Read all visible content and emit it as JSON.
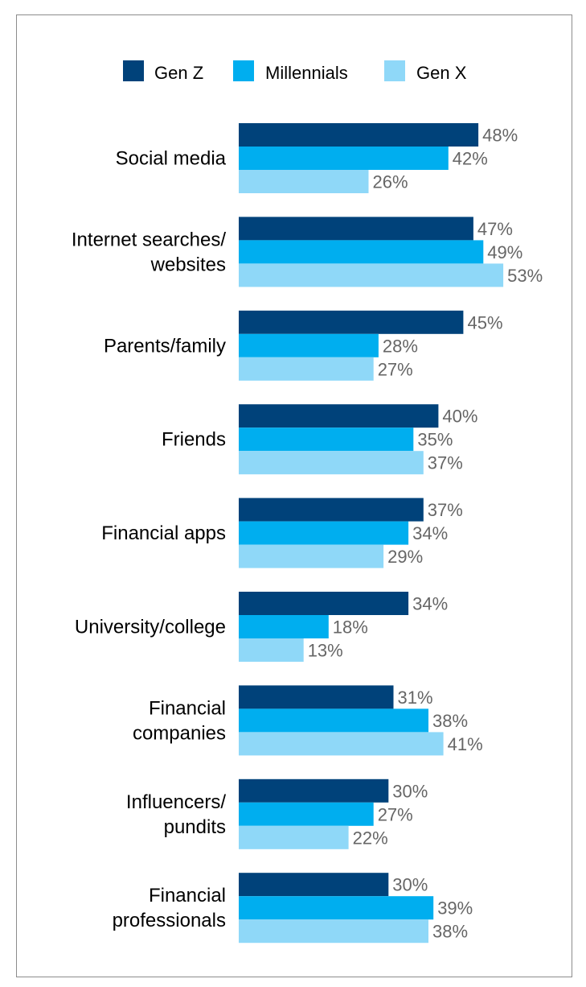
{
  "chart_data": {
    "type": "bar",
    "orientation": "horizontal",
    "title": "",
    "xlabel": "",
    "ylabel": "",
    "value_suffix": "%",
    "legend_position": "top",
    "grid": false,
    "xlim": [
      0,
      60
    ],
    "categories": [
      [
        "Social media"
      ],
      [
        "Internet searches/",
        "websites"
      ],
      [
        "Parents/family"
      ],
      [
        "Friends"
      ],
      [
        "Financial apps"
      ],
      [
        "University/college"
      ],
      [
        "Financial",
        "companies"
      ],
      [
        "Influencers/",
        "pundits"
      ],
      [
        "Financial",
        "professionals"
      ]
    ],
    "series": [
      {
        "name": "Gen Z",
        "color": "#00427a",
        "values": [
          48,
          47,
          45,
          40,
          37,
          34,
          31,
          30,
          30
        ]
      },
      {
        "name": "Millennials",
        "color": "#00aeef",
        "values": [
          42,
          49,
          28,
          35,
          34,
          18,
          38,
          27,
          39
        ]
      },
      {
        "name": "Gen X",
        "color": "#8fd8f8",
        "values": [
          26,
          53,
          27,
          37,
          29,
          13,
          41,
          22,
          38
        ]
      }
    ]
  }
}
